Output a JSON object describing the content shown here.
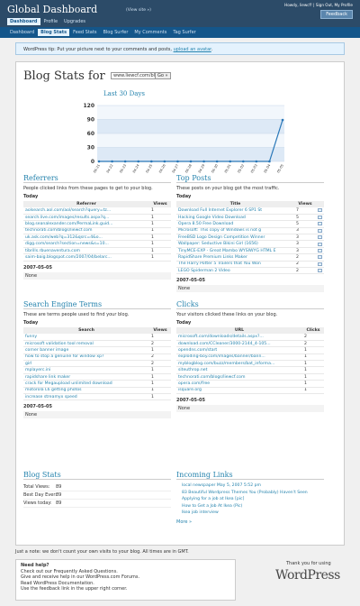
{
  "header": {
    "title": "Global Dashboard",
    "view_site": "(View site »)",
    "howdy": "Howdy, liewcf! | Sign Out, My Profile",
    "feedback": "Feedback",
    "tabs": [
      "Dashboard",
      "Profile",
      "Upgrades"
    ],
    "subtabs": [
      "Dashboard",
      "Blog Stats",
      "Feed Stats",
      "Blog Surfer",
      "My Comments",
      "Tag Surfer"
    ]
  },
  "tip": {
    "before": "WordPress tip: Put your picture next to your comments and posts,",
    "link": "upload an avatar",
    "after": "."
  },
  "stats_heading": "Blog Stats for",
  "blog_select": "www.liewcf.com/blog",
  "go_button": "Go »",
  "chart_data": {
    "type": "line",
    "title": "Last 30 Days",
    "categories": [
      "04-21",
      "04-22",
      "04-23",
      "04-24",
      "04-25",
      "04-26",
      "04-27",
      "04-28",
      "04-29",
      "04-30",
      "05-01",
      "05-02",
      "05-03",
      "05-04",
      "05-05"
    ],
    "values": [
      0,
      0,
      0,
      0,
      0,
      0,
      0,
      0,
      0,
      0,
      0,
      0,
      0,
      0,
      89
    ],
    "ylim": [
      0,
      120
    ],
    "yticks": [
      0,
      30,
      60,
      90,
      120
    ],
    "color": "#2a78b8",
    "grid": true
  },
  "panels": [
    {
      "title": "Referrers",
      "description": "People clicked links from these pages to get to your blog.",
      "today_label": "Today",
      "columns": [
        "Referrer",
        "Views"
      ],
      "rows": [
        [
          "aolsearch.aol.com/aol/search?query=tz...",
          "1"
        ],
        [
          "search.live.com/images/results.aspx?q...",
          "1"
        ],
        [
          "blog.seanalexander.com/PermaLink.guid...",
          "1"
        ],
        [
          "technorati.com/blogs/liewcf.com",
          "1"
        ],
        [
          "uk.ask.com/web?q=312&qsrc=4&o...",
          "1"
        ],
        [
          "digg.com/search?section=news&s=10...",
          "1"
        ],
        [
          "tibrills.rbuenaventura.com",
          "1"
        ],
        [
          "saim-baig.blogspot.com/2007/04/belarc...",
          "1"
        ]
      ],
      "yesterday_label": "2007-05-05",
      "yesterday_text": "None"
    },
    {
      "title": "Top Posts",
      "description": "These posts on your blog got the most traffic.",
      "today_label": "Today",
      "columns": [
        "Title",
        "Views"
      ],
      "rows": [
        [
          "Download Full Internet Explorer 6 SP1 St",
          "7"
        ],
        [
          "Hacking Google Video Download",
          "5"
        ],
        [
          "Opera 8.50 Free Download",
          "5"
        ],
        [
          "Microsoft: This copy of Windows is not g",
          "3"
        ],
        [
          "FreeBSD Logo Design Competition Winner",
          "3"
        ],
        [
          "Wallpaper: Seductive Bikini Girl (1656)",
          "3"
        ],
        [
          "TinyMCE-EXP - Great Mambo WYSIWYG HTML E",
          "3"
        ],
        [
          "RapidShare Premium Links Maker",
          "2"
        ],
        [
          "The Harry Potter 5 Trailers that You Won",
          "2"
        ],
        [
          "LEGO Spiderman 2 Video",
          "2"
        ]
      ],
      "yesterday_label": "2007-05-05",
      "yesterday_text": "None"
    },
    {
      "title": "Search Engine Terms",
      "description": "These are terms people used to find your blog.",
      "today_label": "Today",
      "columns": [
        "Search",
        "Views"
      ],
      "rows": [
        [
          "funny",
          "1"
        ],
        [
          "microsoft validation tool removal",
          "2"
        ],
        [
          "corner banner image",
          "1"
        ],
        [
          "how to stop a genuine for window xp?",
          "2"
        ],
        [
          "girl",
          "2"
        ],
        [
          "mplayerc.ini",
          "1"
        ],
        [
          "rapidshare link maker",
          "1"
        ],
        [
          "crack for Megaupload unlimited download",
          "1"
        ],
        [
          "motorola L6 getting photos",
          "1"
        ],
        [
          "increase streamyx speed",
          "1"
        ]
      ],
      "yesterday_label": "2007-05-05",
      "yesterday_text": "None"
    },
    {
      "title": "Clicks",
      "description": "Your visitors clicked these links on your blog.",
      "today_label": "Today",
      "columns": [
        "URL",
        "Clicks"
      ],
      "rows": [
        [
          "microsoft.com/downloads/details.aspx?...",
          "2"
        ],
        [
          "download.com/CCleaner/3000-2144_4-105...",
          "2"
        ],
        [
          "opendns.com/start",
          "1"
        ],
        [
          "exploding-boy.com/images/banner/bann...",
          "1"
        ],
        [
          "myblogblog.com/buzz/members/bat_informa...",
          "1"
        ],
        [
          "siteuthrop.net",
          "1"
        ],
        [
          "technorati.com/blogs/liewcf.com",
          "1"
        ],
        [
          "opera.com/free",
          "1"
        ],
        [
          "isquare.org",
          "1"
        ]
      ],
      "yesterday_label": "2007-05-05",
      "yesterday_text": "None"
    }
  ],
  "summary": {
    "title": "Blog Stats",
    "rows": [
      [
        "Total Views:",
        "89"
      ],
      [
        "Best Day Ever:",
        "89"
      ],
      [
        "Views today:",
        "89"
      ]
    ]
  },
  "incoming": {
    "title": "Incoming Links",
    "links": [
      "local newspaper May 5, 2007 5:52 pm",
      "83 Beautiful Wordpress Themes You (Probably) Haven't Seen",
      "Applying for a job at Ikea [pic]",
      "How to Get a Job At Ikea (Pic)",
      "Ikea job interview"
    ],
    "more": "More »"
  },
  "note": "Just a note: we don't count your own visits to your blog. All times are in GMT.",
  "help": {
    "title": "Need help?",
    "lines": [
      "Check out our Frequently Asked Questions.",
      "Give and receive help in our WordPress.com Forums.",
      "Read WordPress Documentation.",
      "Use the feedback link in the upper right corner."
    ]
  },
  "thanks": "Thank you for using",
  "logo": "WordPress"
}
